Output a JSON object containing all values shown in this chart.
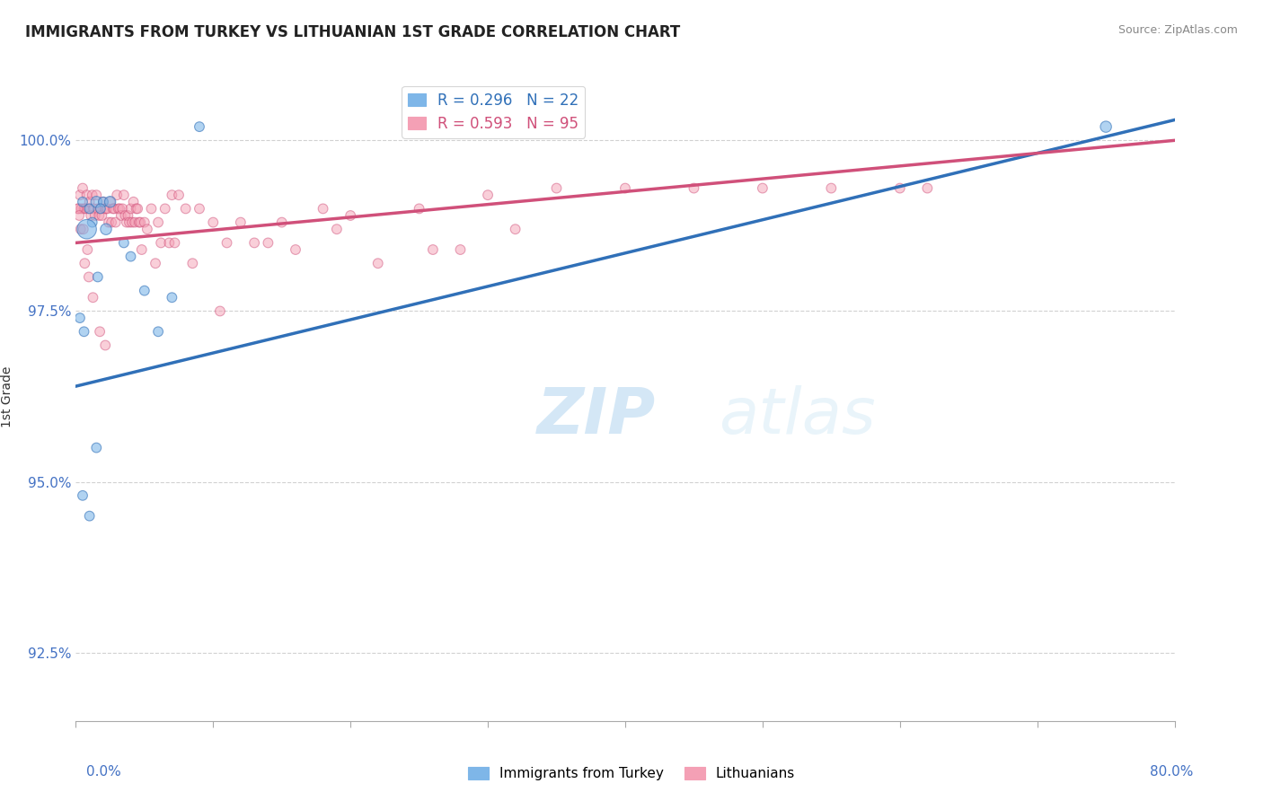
{
  "title": "IMMIGRANTS FROM TURKEY VS LITHUANIAN 1ST GRADE CORRELATION CHART",
  "source": "Source: ZipAtlas.com",
  "ylabel": "1st Grade",
  "xmin": 0.0,
  "xmax": 80.0,
  "ymin": 91.5,
  "ymax": 101.0,
  "yticks": [
    92.5,
    95.0,
    97.5,
    100.0
  ],
  "ytick_labels": [
    "92.5%",
    "95.0%",
    "97.5%",
    "100.0%"
  ],
  "xticks": [
    0.0,
    10.0,
    20.0,
    30.0,
    40.0,
    50.0,
    60.0,
    70.0,
    80.0
  ],
  "blue_R": 0.296,
  "blue_N": 22,
  "pink_R": 0.593,
  "pink_N": 95,
  "blue_color": "#7EB6E8",
  "pink_color": "#F4A0B5",
  "blue_line_color": "#3070B8",
  "pink_line_color": "#D0507A",
  "blue_line_x0": 0.0,
  "blue_line_y0": 96.4,
  "blue_line_x1": 80.0,
  "blue_line_y1": 100.3,
  "pink_line_x0": 0.0,
  "pink_line_y0": 98.5,
  "pink_line_x1": 80.0,
  "pink_line_y1": 100.0,
  "blue_x": [
    0.5,
    1.0,
    1.5,
    2.0,
    2.5,
    1.2,
    1.8,
    0.8,
    2.2,
    1.6,
    3.5,
    4.0,
    5.0,
    7.0,
    9.0,
    6.0,
    0.5,
    1.0,
    1.5,
    75.0,
    0.3,
    0.6
  ],
  "blue_y": [
    99.1,
    99.0,
    99.1,
    99.1,
    99.1,
    98.8,
    99.0,
    98.7,
    98.7,
    98.0,
    98.5,
    98.3,
    97.8,
    97.7,
    100.2,
    97.2,
    94.8,
    94.5,
    95.5,
    100.2,
    97.4,
    97.2
  ],
  "blue_size": [
    60,
    60,
    80,
    60,
    80,
    60,
    60,
    240,
    80,
    60,
    60,
    60,
    60,
    60,
    60,
    60,
    60,
    60,
    60,
    80,
    60,
    60
  ],
  "pink_x": [
    0.2,
    0.3,
    0.4,
    0.5,
    0.6,
    0.7,
    0.8,
    0.9,
    1.0,
    1.1,
    1.2,
    1.3,
    1.4,
    1.5,
    1.6,
    1.7,
    1.8,
    1.9,
    2.0,
    2.1,
    2.2,
    2.3,
    2.4,
    2.5,
    2.6,
    2.7,
    2.8,
    2.9,
    3.0,
    3.1,
    3.2,
    3.3,
    3.4,
    3.5,
    3.6,
    3.7,
    3.8,
    3.9,
    4.0,
    4.1,
    4.2,
    4.3,
    4.4,
    4.5,
    4.6,
    4.7,
    4.8,
    5.0,
    5.2,
    5.5,
    5.8,
    6.0,
    6.2,
    6.5,
    6.8,
    7.0,
    7.2,
    7.5,
    8.0,
    8.5,
    9.0,
    10.0,
    10.5,
    11.0,
    12.0,
    13.0,
    14.0,
    15.0,
    16.0,
    18.0,
    19.0,
    20.0,
    22.0,
    25.0,
    26.0,
    28.0,
    30.0,
    32.0,
    35.0,
    40.0,
    45.0,
    50.0,
    55.0,
    60.0,
    62.0,
    0.15,
    0.25,
    0.35,
    0.55,
    0.65,
    0.85,
    0.95,
    1.25,
    1.75,
    2.15
  ],
  "pink_y": [
    99.0,
    99.2,
    99.0,
    99.3,
    99.0,
    99.0,
    99.2,
    99.0,
    99.1,
    98.9,
    99.2,
    99.0,
    98.9,
    99.2,
    99.0,
    98.9,
    99.0,
    98.9,
    99.1,
    99.0,
    99.0,
    99.0,
    98.8,
    99.1,
    98.8,
    99.0,
    99.0,
    98.8,
    99.2,
    99.0,
    99.0,
    98.9,
    99.0,
    99.2,
    98.9,
    98.8,
    98.9,
    98.8,
    99.0,
    98.8,
    99.1,
    98.8,
    99.0,
    99.0,
    98.8,
    98.8,
    98.4,
    98.8,
    98.7,
    99.0,
    98.2,
    98.8,
    98.5,
    99.0,
    98.5,
    99.2,
    98.5,
    99.2,
    99.0,
    98.2,
    99.0,
    98.8,
    97.5,
    98.5,
    98.8,
    98.5,
    98.5,
    98.8,
    98.4,
    99.0,
    98.7,
    98.9,
    98.2,
    99.0,
    98.4,
    98.4,
    99.2,
    98.7,
    99.3,
    99.3,
    99.3,
    99.3,
    99.3,
    99.3,
    99.3,
    99.0,
    98.9,
    98.7,
    98.7,
    98.2,
    98.4,
    98.0,
    97.7,
    97.2,
    97.0
  ],
  "pink_size": [
    60,
    60,
    60,
    60,
    60,
    60,
    60,
    60,
    60,
    60,
    60,
    60,
    60,
    60,
    60,
    60,
    60,
    60,
    60,
    60,
    60,
    60,
    60,
    60,
    60,
    60,
    60,
    60,
    60,
    60,
    60,
    60,
    60,
    60,
    60,
    60,
    60,
    60,
    60,
    60,
    60,
    60,
    60,
    60,
    60,
    60,
    60,
    60,
    60,
    60,
    60,
    60,
    60,
    60,
    60,
    60,
    60,
    60,
    60,
    60,
    60,
    60,
    60,
    60,
    60,
    60,
    60,
    60,
    60,
    60,
    60,
    60,
    60,
    60,
    60,
    60,
    60,
    60,
    60,
    60,
    60,
    60,
    60,
    60,
    60,
    60,
    60,
    60,
    60,
    60,
    60,
    60,
    60,
    60,
    60
  ]
}
